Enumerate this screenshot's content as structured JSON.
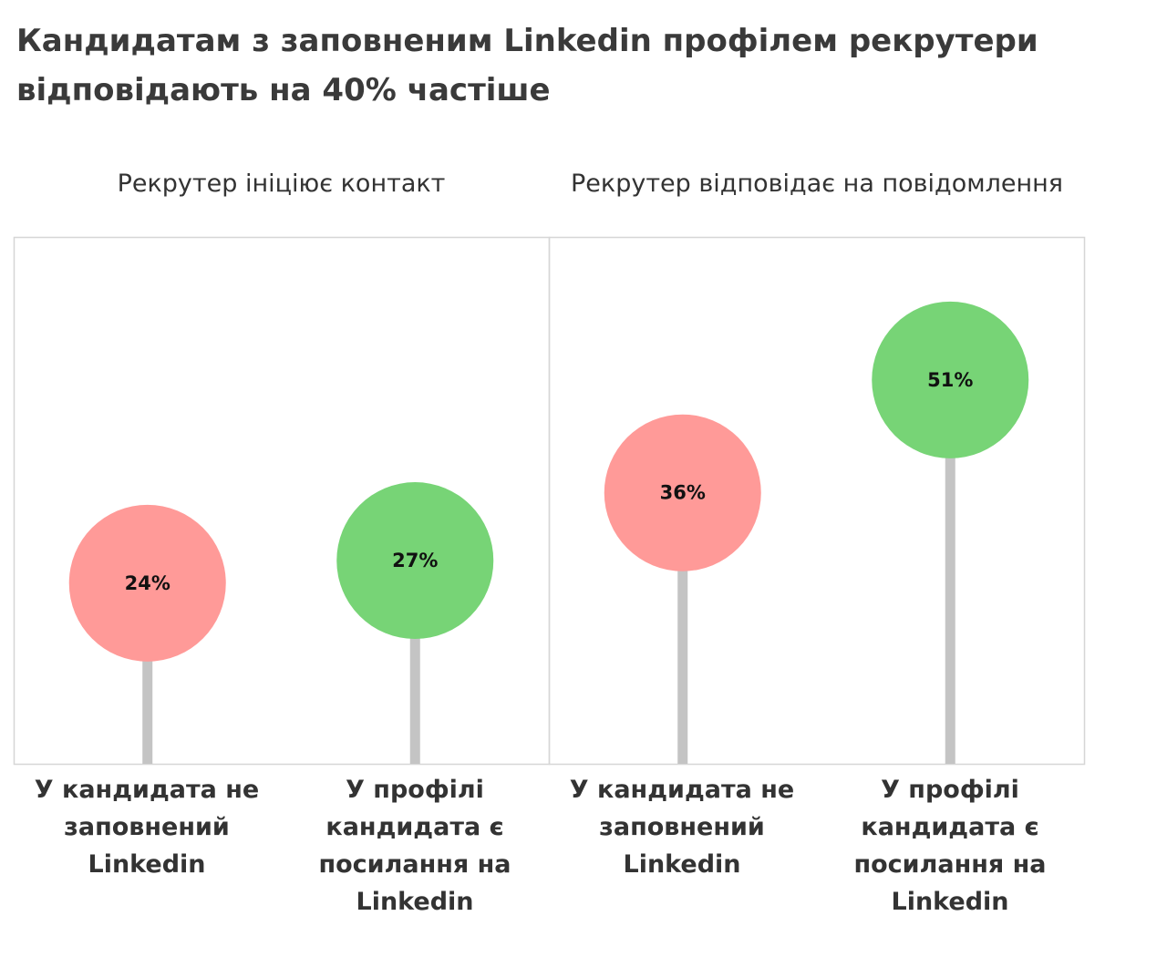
{
  "title": "Кандидатам з заповненим Linkedin профілем рекрутери відповідають на 40% частіше",
  "chart_data": {
    "type": "lollipop",
    "title": "Кандидатам з заповненим Linkedin профілем рекрутери відповідають на 40% частіше",
    "panels": [
      {
        "title": "Рекрутер ініціює контакт",
        "categories": [
          "У кандидата не заповнений Linkedin",
          "У профілі кандидата є посилання на Linkedin"
        ],
        "values": [
          24,
          27
        ],
        "labels": [
          "24%",
          "27%"
        ],
        "colors": [
          "#ff9a98",
          "#77d476"
        ]
      },
      {
        "title": "Рекрутер відповідає на повідомлення",
        "categories": [
          "У кандидата не заповнений Linkedin",
          "У профілі кандидата є посилання на Linkedin"
        ],
        "values": [
          36,
          51
        ],
        "labels": [
          "36%",
          "51%"
        ],
        "colors": [
          "#ff9a98",
          "#77d476"
        ]
      }
    ],
    "ylim": [
      0,
      70
    ],
    "stem_color": "#c4c4c4",
    "frame_color": "#d6d6d6"
  }
}
